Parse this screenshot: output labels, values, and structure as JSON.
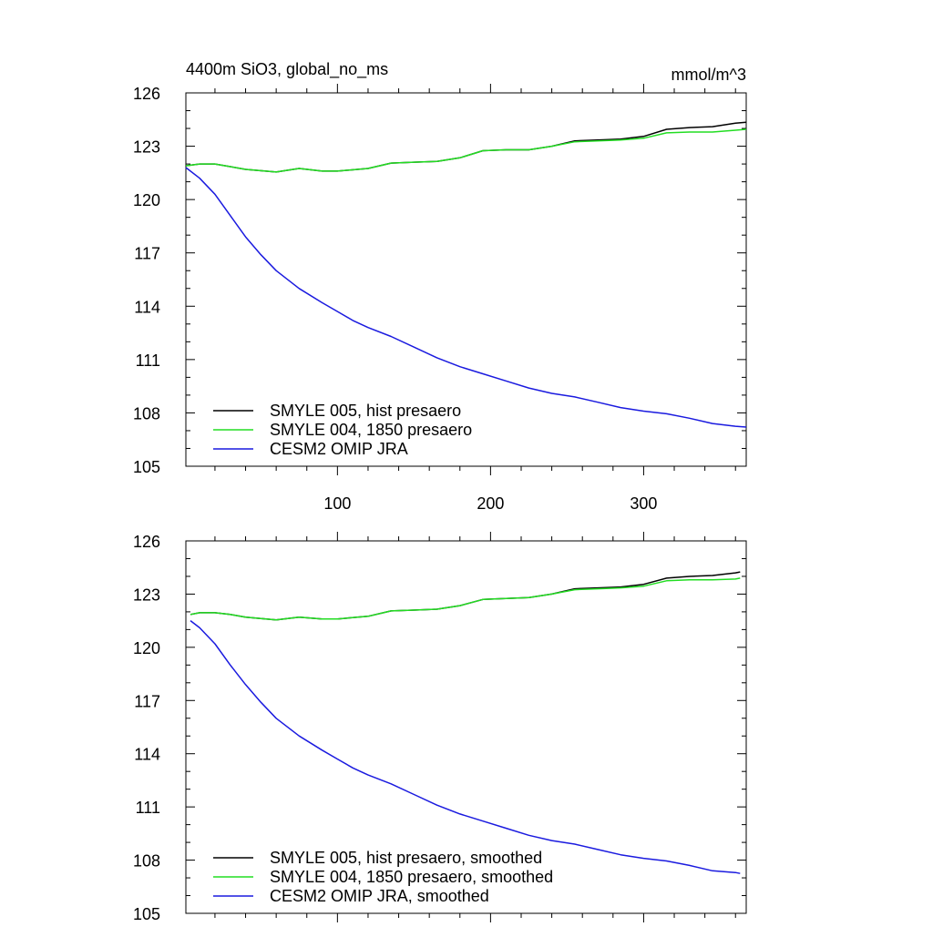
{
  "chart_data": [
    {
      "type": "line",
      "title": "4400m SiO3, global_no_ms",
      "units": "mmol/m^3",
      "xlim": [
        1,
        367
      ],
      "ylim": [
        105,
        126
      ],
      "yticks": [
        105,
        108,
        111,
        114,
        117,
        120,
        123,
        126
      ],
      "xticks": [
        100,
        200,
        300
      ],
      "show_x_tick_labels": true,
      "grid": false,
      "legend_position": "bottom-left",
      "series": [
        {
          "name": "SMYLE 005, hist presaero",
          "color": "#000000",
          "x": [
            1,
            10,
            20,
            30,
            40,
            60,
            75,
            90,
            100,
            120,
            135,
            150,
            165,
            180,
            195,
            210,
            225,
            240,
            255,
            270,
            285,
            300,
            315,
            330,
            345,
            360,
            367
          ],
          "y": [
            121.9,
            122.0,
            122.0,
            121.85,
            121.7,
            121.55,
            121.75,
            121.6,
            121.6,
            121.75,
            122.05,
            122.1,
            122.15,
            122.35,
            122.75,
            122.8,
            122.8,
            123.0,
            123.3,
            123.35,
            123.4,
            123.55,
            123.95,
            124.05,
            124.1,
            124.3,
            124.35
          ]
        },
        {
          "name": "SMYLE 004, 1850 presaero",
          "color": "#22dd22",
          "x": [
            1,
            10,
            20,
            30,
            40,
            60,
            75,
            90,
            100,
            120,
            135,
            150,
            165,
            180,
            195,
            210,
            225,
            240,
            255,
            270,
            285,
            300,
            315,
            330,
            345,
            360,
            367
          ],
          "y": [
            121.9,
            122.0,
            122.0,
            121.85,
            121.7,
            121.55,
            121.75,
            121.6,
            121.6,
            121.75,
            122.05,
            122.1,
            122.15,
            122.35,
            122.75,
            122.8,
            122.8,
            123.0,
            123.25,
            123.3,
            123.35,
            123.45,
            123.75,
            123.8,
            123.8,
            123.9,
            123.95
          ]
        },
        {
          "name": "CESM2 OMIP JRA",
          "color": "#1a1adf",
          "x": [
            1,
            10,
            20,
            30,
            40,
            50,
            60,
            75,
            90,
            100,
            110,
            120,
            135,
            150,
            165,
            180,
            195,
            210,
            225,
            240,
            255,
            270,
            285,
            300,
            315,
            330,
            345,
            360,
            367
          ],
          "y": [
            121.8,
            121.2,
            120.3,
            119.1,
            117.9,
            116.9,
            116.0,
            115.0,
            114.2,
            113.7,
            113.2,
            112.8,
            112.3,
            111.7,
            111.1,
            110.6,
            110.2,
            109.8,
            109.4,
            109.1,
            108.9,
            108.6,
            108.3,
            108.1,
            107.95,
            107.7,
            107.4,
            107.25,
            107.2
          ]
        }
      ]
    },
    {
      "type": "line",
      "title": "",
      "xlim": [
        1,
        367
      ],
      "ylim": [
        105,
        126
      ],
      "yticks": [
        105,
        108,
        111,
        114,
        117,
        120,
        123,
        126
      ],
      "xticks": [
        100,
        200,
        300
      ],
      "show_x_tick_labels": false,
      "grid": false,
      "legend_position": "bottom-left",
      "series": [
        {
          "name": "SMYLE 005, hist presaero, smoothed",
          "color": "#000000",
          "x": [
            4,
            10,
            20,
            30,
            40,
            60,
            75,
            90,
            100,
            120,
            135,
            150,
            165,
            180,
            195,
            210,
            225,
            240,
            255,
            270,
            285,
            300,
            315,
            330,
            345,
            360,
            363
          ],
          "y": [
            121.85,
            121.95,
            121.95,
            121.85,
            121.7,
            121.55,
            121.7,
            121.6,
            121.6,
            121.75,
            122.05,
            122.1,
            122.15,
            122.35,
            122.7,
            122.75,
            122.8,
            123.0,
            123.3,
            123.35,
            123.4,
            123.55,
            123.9,
            124.0,
            124.05,
            124.2,
            124.25
          ]
        },
        {
          "name": "SMYLE 004, 1850 presaero, smoothed",
          "color": "#22dd22",
          "x": [
            4,
            10,
            20,
            30,
            40,
            60,
            75,
            90,
            100,
            120,
            135,
            150,
            165,
            180,
            195,
            210,
            225,
            240,
            255,
            270,
            285,
            300,
            315,
            330,
            345,
            360,
            363
          ],
          "y": [
            121.85,
            121.95,
            121.95,
            121.85,
            121.7,
            121.55,
            121.7,
            121.6,
            121.6,
            121.75,
            122.05,
            122.1,
            122.15,
            122.35,
            122.7,
            122.75,
            122.8,
            123.0,
            123.25,
            123.3,
            123.35,
            123.45,
            123.75,
            123.8,
            123.8,
            123.85,
            123.9
          ]
        },
        {
          "name": "CESM2 OMIP JRA, smoothed",
          "color": "#1a1adf",
          "x": [
            4,
            10,
            20,
            30,
            40,
            50,
            60,
            75,
            90,
            100,
            110,
            120,
            135,
            150,
            165,
            180,
            195,
            210,
            225,
            240,
            255,
            270,
            285,
            300,
            315,
            330,
            345,
            360,
            363
          ],
          "y": [
            121.5,
            121.1,
            120.2,
            119.0,
            117.9,
            116.9,
            116.0,
            115.0,
            114.2,
            113.7,
            113.2,
            112.8,
            112.3,
            111.7,
            111.1,
            110.6,
            110.2,
            109.8,
            109.4,
            109.1,
            108.9,
            108.6,
            108.3,
            108.1,
            107.95,
            107.7,
            107.4,
            107.3,
            107.25
          ]
        }
      ]
    }
  ]
}
